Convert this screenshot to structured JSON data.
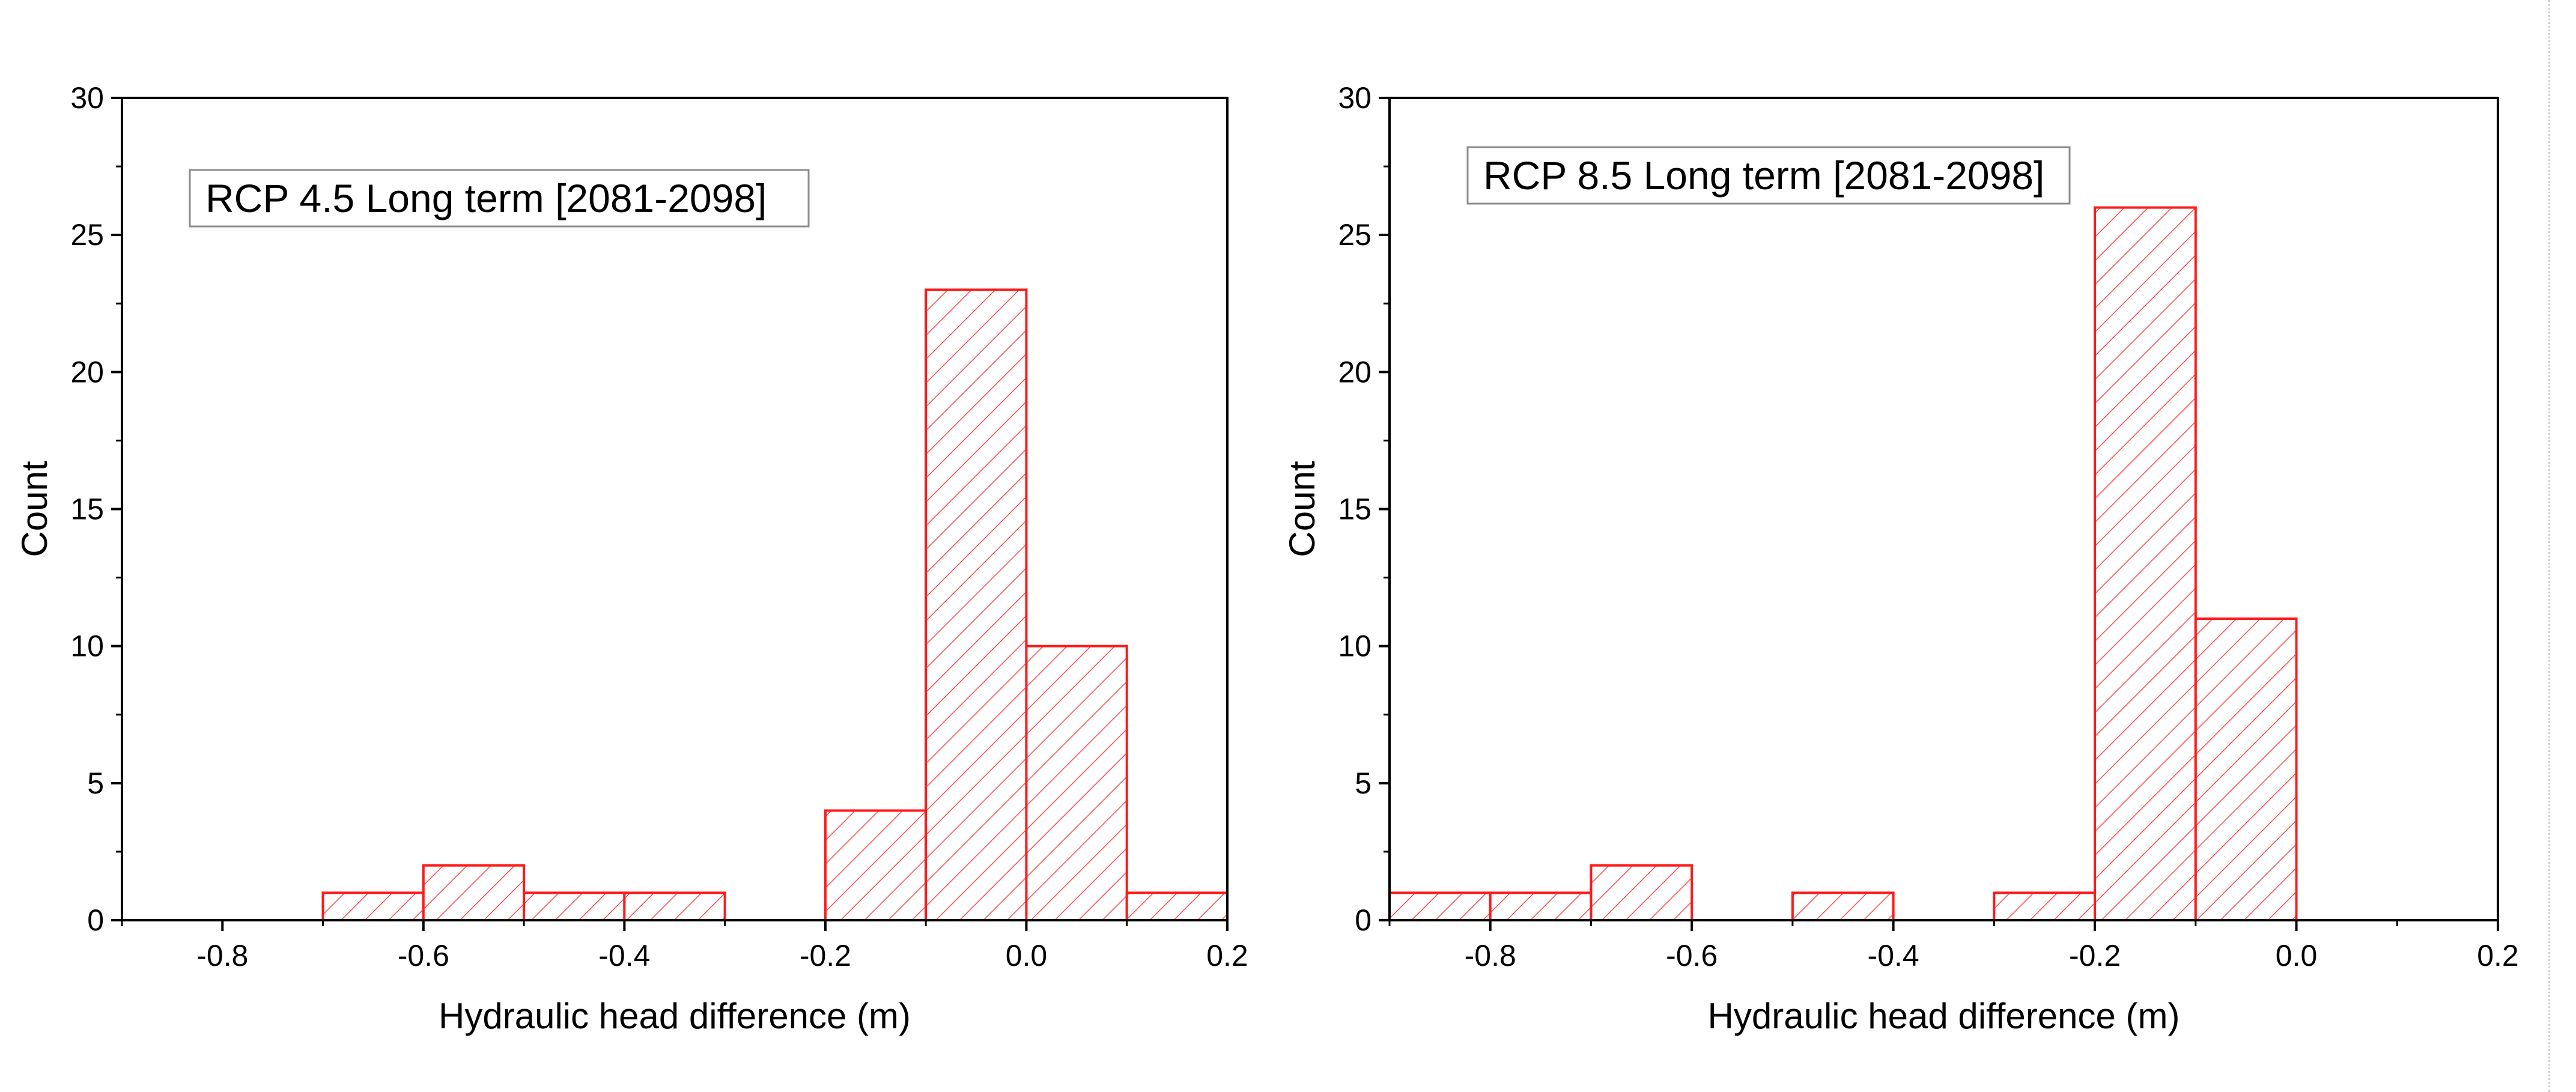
{
  "chart_data": [
    {
      "type": "bar",
      "subtype": "histogram",
      "legend": "RCP 4.5 Long term [2081-2098]",
      "xlabel": "Hydraulic head difference (m)",
      "ylabel": "Count",
      "xlim": [
        -0.9,
        0.2
      ],
      "ylim": [
        0,
        30
      ],
      "xticks": [
        -0.8,
        -0.6,
        -0.4,
        -0.2,
        0.0,
        0.2
      ],
      "xtick_labels": [
        "-0.8",
        "-0.6",
        "-0.4",
        "-0.2",
        "0.0",
        "0.2"
      ],
      "yticks": [
        0,
        5,
        10,
        15,
        20,
        25,
        30
      ],
      "ytick_labels": [
        "0",
        "5",
        "10",
        "15",
        "20",
        "25",
        "30"
      ],
      "bins": [
        {
          "start": -0.7,
          "end": -0.6,
          "count": 1
        },
        {
          "start": -0.6,
          "end": -0.5,
          "count": 2
        },
        {
          "start": -0.5,
          "end": -0.4,
          "count": 1
        },
        {
          "start": -0.4,
          "end": -0.3,
          "count": 1
        },
        {
          "start": -0.2,
          "end": -0.1,
          "count": 4
        },
        {
          "start": -0.1,
          "end": 0.0,
          "count": 23
        },
        {
          "start": 0.0,
          "end": 0.1,
          "count": 10
        },
        {
          "start": 0.1,
          "end": 0.2,
          "count": 1
        }
      ]
    },
    {
      "type": "bar",
      "subtype": "histogram",
      "legend": "RCP 8.5 Long term [2081-2098]",
      "xlabel": "Hydraulic head difference (m)",
      "ylabel": "Count",
      "xlim": [
        -0.9,
        0.2
      ],
      "ylim": [
        0,
        30
      ],
      "xticks": [
        -0.8,
        -0.6,
        -0.4,
        -0.2,
        0.0,
        0.2
      ],
      "xtick_labels": [
        "-0.8",
        "-0.6",
        "-0.4",
        "-0.2",
        "0.0",
        "0.2"
      ],
      "yticks": [
        0,
        5,
        10,
        15,
        20,
        25,
        30
      ],
      "ytick_labels": [
        "0",
        "5",
        "10",
        "15",
        "20",
        "25",
        "30"
      ],
      "bins": [
        {
          "start": -0.9,
          "end": -0.8,
          "count": 1
        },
        {
          "start": -0.8,
          "end": -0.7,
          "count": 1
        },
        {
          "start": -0.7,
          "end": -0.6,
          "count": 2
        },
        {
          "start": -0.5,
          "end": -0.4,
          "count": 1
        },
        {
          "start": -0.3,
          "end": -0.2,
          "count": 1
        },
        {
          "start": -0.2,
          "end": -0.1,
          "count": 26
        },
        {
          "start": -0.1,
          "end": 0.0,
          "count": 11
        }
      ]
    }
  ],
  "colors": {
    "bar_edge": "#ff1a1a",
    "hatch": "#ff4d4d",
    "axis": "#000000",
    "legend_border": "#8c8c8c"
  }
}
